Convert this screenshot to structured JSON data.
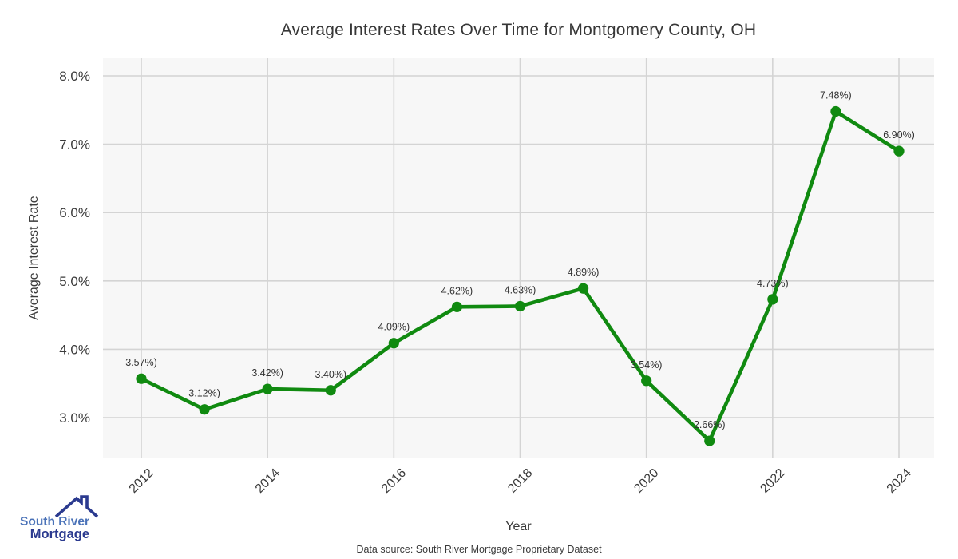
{
  "title": "Average Interest Rates Over Time for Montgomery County, OH",
  "footer": {
    "data_source": "Data source: South River Mortgage Proprietary Dataset"
  },
  "logo": {
    "line1": "South River",
    "line2": "Mortgage",
    "line1_color": "#4a72b8",
    "line2_color": "#2b3a8f",
    "icon": "house-roof-icon"
  },
  "chart_data": {
    "type": "line",
    "title": "Average Interest Rates Over Time for Montgomery County, OH",
    "xlabel": "Year",
    "ylabel": "Average Interest Rate",
    "x": [
      2012,
      2013,
      2014,
      2015,
      2016,
      2017,
      2018,
      2019,
      2020,
      2021,
      2022,
      2023,
      2024
    ],
    "series": [
      {
        "name": "Average Interest Rate",
        "values": [
          3.57,
          3.12,
          3.42,
          3.4,
          4.09,
          4.62,
          4.63,
          4.89,
          3.54,
          2.66,
          4.73,
          7.48,
          6.9
        ],
        "point_labels": [
          "3.57%)",
          "3.12%)",
          "3.42%)",
          "3.40%)",
          "4.09%)",
          "4.62%)",
          "4.63%)",
          "4.89%)",
          "3.54%)",
          "2.66%)",
          "4.73%)",
          "7.48%)",
          "6.90%)"
        ]
      }
    ],
    "xticks": [
      2012,
      2014,
      2016,
      2018,
      2020,
      2022,
      2024
    ],
    "yticks": [
      3,
      4,
      5,
      6,
      7,
      8
    ],
    "ytick_labels": [
      "3.0%",
      "4.0%",
      "5.0%",
      "6.0%",
      "7.0%",
      "8.0%"
    ],
    "ylim": [
      2.4,
      8.26
    ],
    "grid": true,
    "legend": "none",
    "colors": {
      "line": "#108a10",
      "marker": "#108a10",
      "plot_background": "#f7f7f7",
      "gridline": "#d4d4d4",
      "tick_text": "#3a3a3a",
      "point_label_text": "#333333"
    }
  }
}
